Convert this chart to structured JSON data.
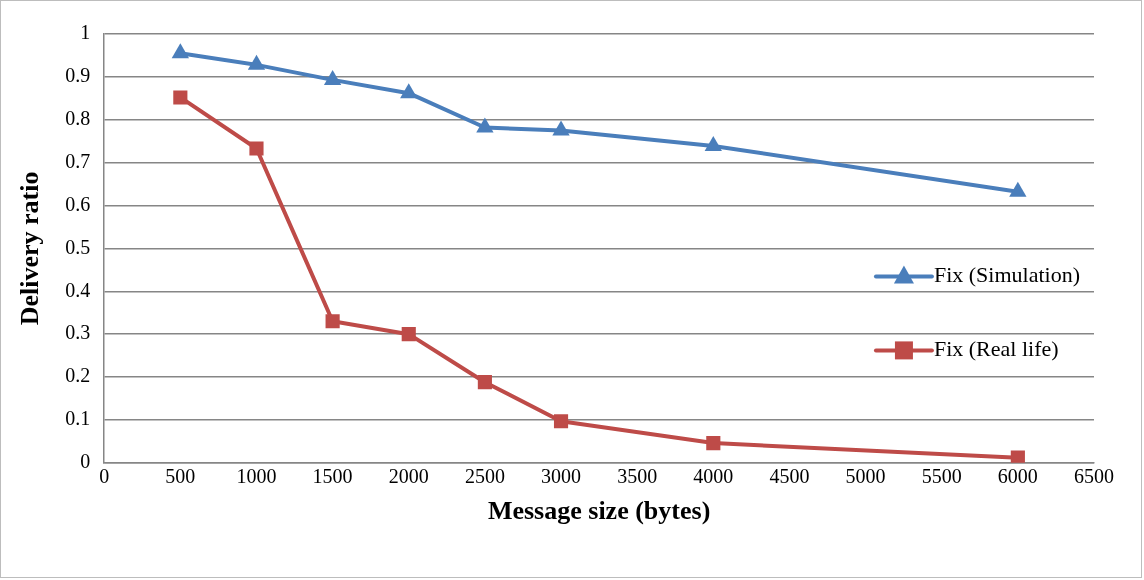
{
  "chart_data": {
    "type": "line",
    "xlabel": "Message size (bytes)",
    "ylabel": "Delivery ratio",
    "x": [
      500,
      1000,
      1500,
      2000,
      2500,
      3000,
      4000,
      6000
    ],
    "series": [
      {
        "name": "Fix (Simulation)",
        "color": "#4a7ebb",
        "marker": "triangle",
        "values": [
          0.955,
          0.928,
          0.893,
          0.862,
          0.782,
          0.775,
          0.739,
          0.632
        ]
      },
      {
        "name": "Fix (Real life)",
        "color": "#be4b48",
        "marker": "square",
        "values": [
          0.852,
          0.733,
          0.33,
          0.3,
          0.188,
          0.097,
          0.046,
          0.012
        ]
      }
    ],
    "xlim": [
      0,
      6500
    ],
    "xticks": [
      0,
      500,
      1000,
      1500,
      2000,
      2500,
      3000,
      3500,
      4000,
      4500,
      5000,
      5500,
      6000,
      6500
    ],
    "ylim": [
      0,
      1
    ],
    "yticks": [
      0,
      0.1,
      0.2,
      0.3,
      0.4,
      0.5,
      0.6,
      0.7,
      0.8,
      0.9,
      1
    ],
    "grid": "y",
    "legend": "right",
    "line_style": "solid"
  }
}
